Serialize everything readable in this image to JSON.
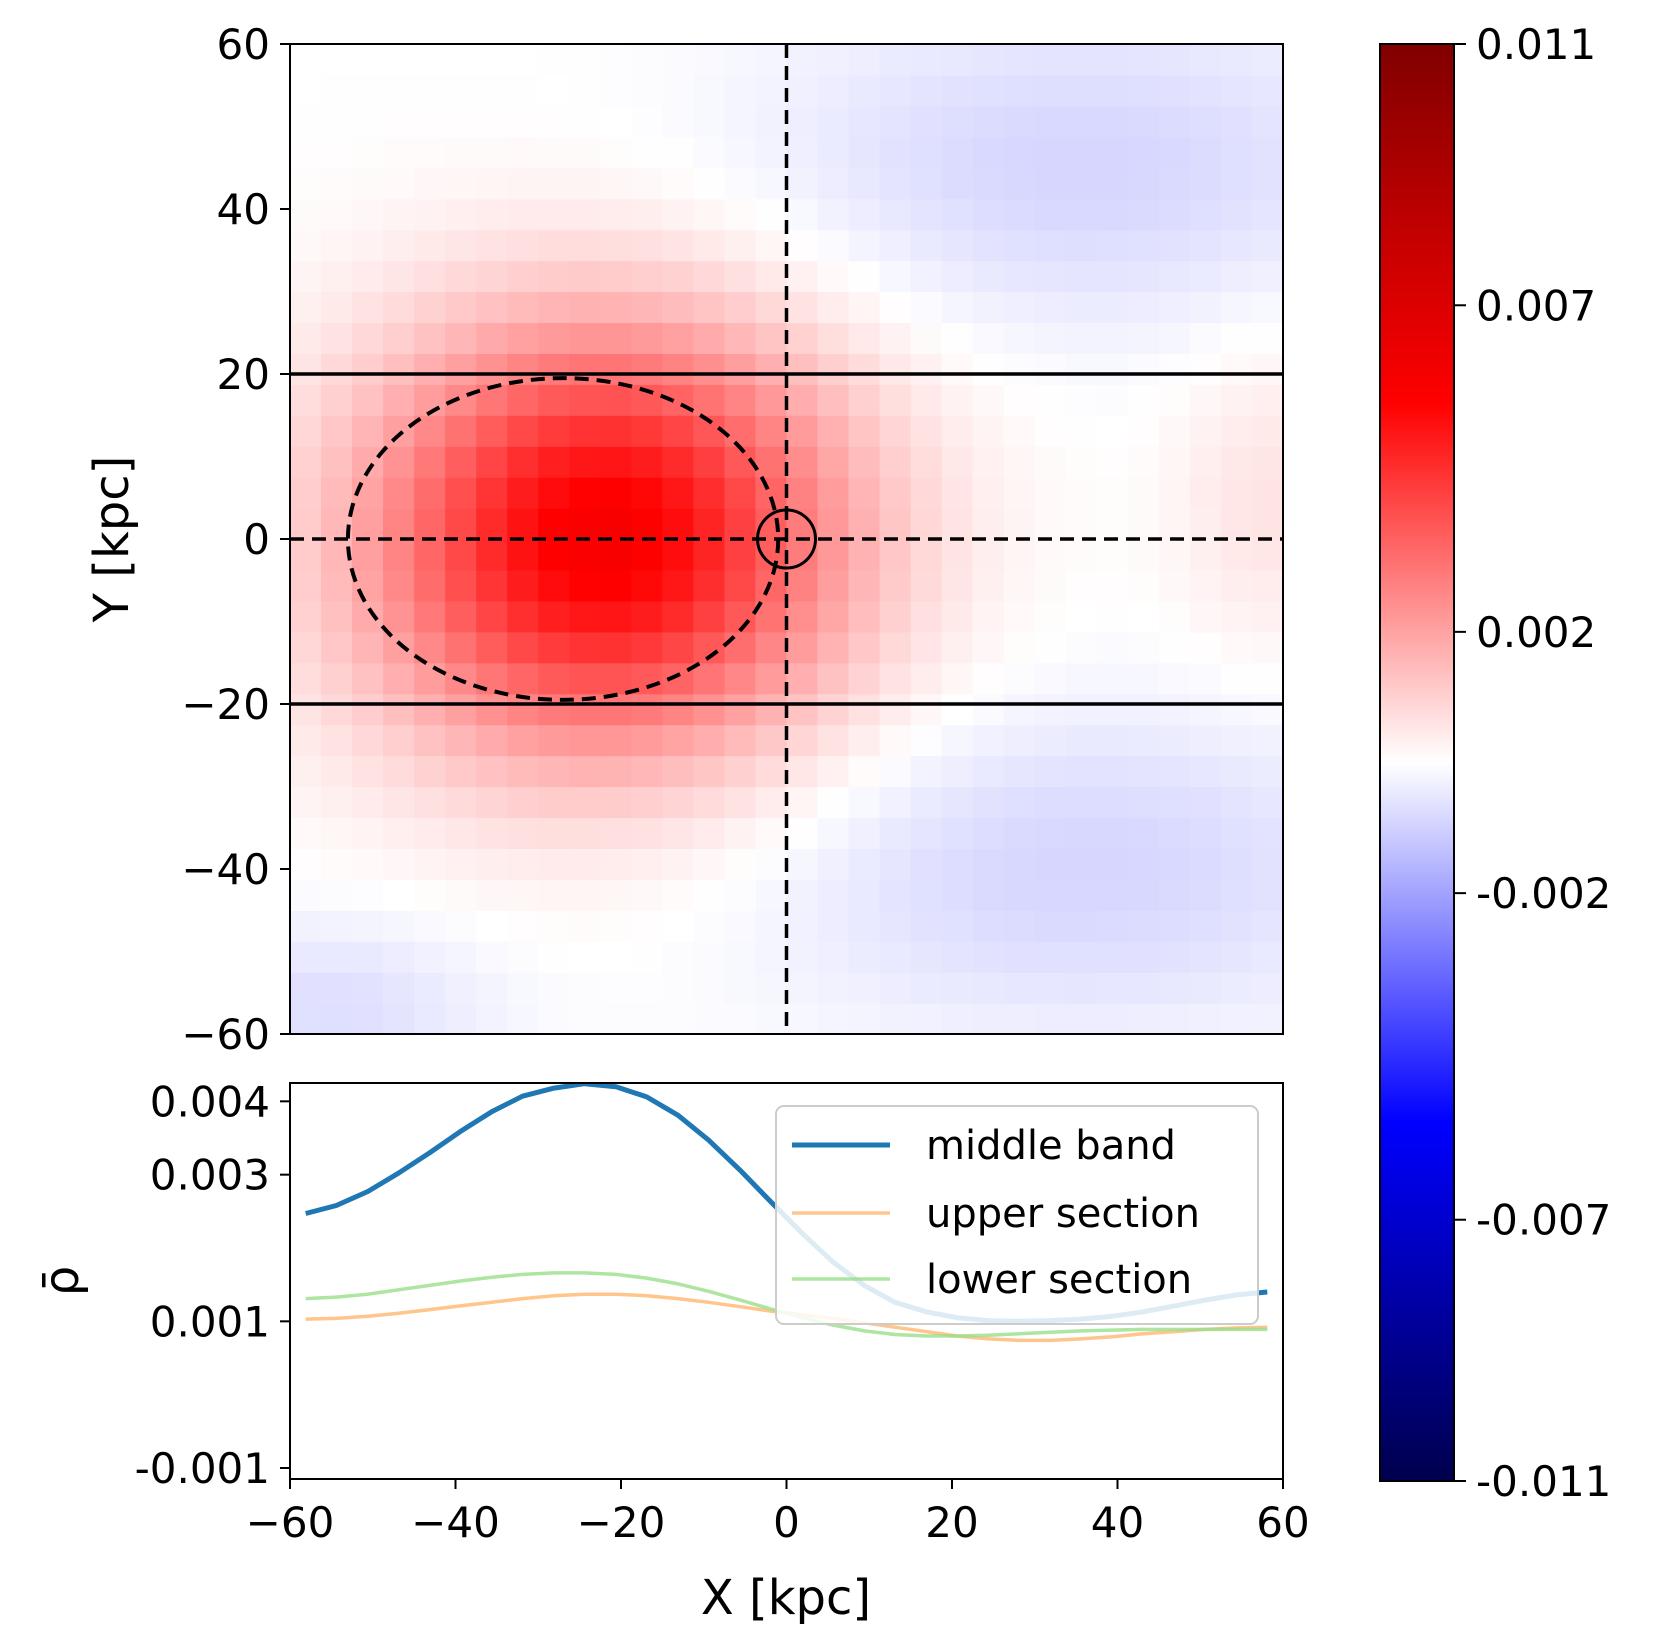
{
  "chart_data": [
    {
      "type": "heatmap",
      "xlabel": "",
      "ylabel": "Y [kpc]",
      "xlim": [
        -60,
        60
      ],
      "ylim": [
        -60,
        60
      ],
      "y_ticks": [
        60,
        40,
        20,
        0,
        -20,
        -40,
        -60
      ],
      "y_tick_labels": [
        "60",
        "40",
        "20",
        "0",
        "−20",
        "−40",
        "−60"
      ],
      "grid": false,
      "colormap": "seismic",
      "field": {
        "grid_cells": [
          32,
          32
        ],
        "positive_blob": {
          "center": [
            -22,
            0
          ],
          "sigma": [
            20,
            18
          ],
          "amplitude": 0.0058
        },
        "negative_lobes": [
          {
            "center": [
              35,
              45
            ],
            "sigma": [
              28,
              14
            ],
            "amplitude": -0.0009
          },
          {
            "center": [
              35,
              -40
            ],
            "sigma": [
              28,
              14
            ],
            "amplitude": -0.0009
          },
          {
            "center": [
              -55,
              -57
            ],
            "sigma": [
              14,
              8
            ],
            "amplitude": -0.0007
          },
          {
            "center": [
              58,
              5
            ],
            "sigma": [
              8,
              14
            ],
            "amplitude": 0.0006
          }
        ]
      },
      "overlays": {
        "band_lines_y": [
          20,
          -20
        ],
        "dashed_axes": {
          "x": 0,
          "y": 0
        },
        "dashed_ellipse": {
          "center": [
            -27,
            0
          ],
          "radii": [
            26,
            19.5
          ]
        },
        "origin_circle": {
          "center": [
            0,
            0
          ]
        }
      }
    },
    {
      "type": "line",
      "xlabel": "X [kpc]",
      "ylabel": "ρ̄",
      "xlim": [
        -60,
        60
      ],
      "ylim": [
        -0.00115,
        0.00425
      ],
      "x_ticks": [
        -60,
        -40,
        -20,
        0,
        20,
        40,
        60
      ],
      "x_tick_labels": [
        "−60",
        "−40",
        "−20",
        "0",
        "20",
        "40",
        "60"
      ],
      "y_ticks": [
        0.004,
        0.003,
        0.001,
        -0.001
      ],
      "y_tick_labels": [
        "0.004",
        "0.003",
        "0.001",
        "-0.001"
      ],
      "legend_position": "top-right",
      "grid": false,
      "series": [
        {
          "name": "middle band",
          "color": "#1f77b4",
          "x": [
            -58.1,
            -54.4,
            -50.6,
            -46.9,
            -43.1,
            -39.4,
            -35.6,
            -31.9,
            -28.1,
            -24.4,
            -20.6,
            -16.9,
            -13.1,
            -9.4,
            -5.6,
            -1.9,
            1.9,
            5.6,
            9.4,
            13.1,
            16.9,
            20.6,
            24.4,
            28.1,
            31.9,
            35.6,
            39.4,
            43.1,
            46.9,
            50.6,
            54.4,
            58.1
          ],
          "values": [
            0.00247,
            0.00258,
            0.00277,
            0.00302,
            0.0033,
            0.00359,
            0.00386,
            0.00407,
            0.00418,
            0.00424,
            0.0042,
            0.00406,
            0.00381,
            0.00347,
            0.00306,
            0.00263,
            0.0022,
            0.00181,
            0.00149,
            0.00126,
            0.00113,
            0.00105,
            0.00101,
            0.001,
            0.00101,
            0.00103,
            0.00107,
            0.00113,
            0.00121,
            0.00129,
            0.00136,
            0.0014
          ]
        },
        {
          "name": "upper section",
          "color": "#ffbb78",
          "x": [
            -58.1,
            -54.4,
            -50.6,
            -46.9,
            -43.1,
            -39.4,
            -35.6,
            -31.9,
            -28.1,
            -24.4,
            -20.6,
            -16.9,
            -13.1,
            -9.4,
            -5.6,
            -1.9,
            1.9,
            5.6,
            9.4,
            13.1,
            16.9,
            20.6,
            24.4,
            28.1,
            31.9,
            35.6,
            39.4,
            43.1,
            46.9,
            50.6,
            54.4,
            58.1
          ],
          "values": [
            0.00103,
            0.00104,
            0.00107,
            0.00111,
            0.00116,
            0.00121,
            0.00126,
            0.00131,
            0.00135,
            0.00137,
            0.00137,
            0.00135,
            0.00131,
            0.00126,
            0.0012,
            0.00114,
            0.00109,
            0.00104,
            0.00098,
            0.00092,
            0.00086,
            0.0008,
            0.00076,
            0.00074,
            0.00074,
            0.00076,
            0.00079,
            0.00083,
            0.00086,
            0.00089,
            0.00091,
            0.00092
          ]
        },
        {
          "name": "lower section",
          "color": "#98df8a",
          "x": [
            -58.1,
            -54.4,
            -50.6,
            -46.9,
            -43.1,
            -39.4,
            -35.6,
            -31.9,
            -28.1,
            -24.4,
            -20.6,
            -16.9,
            -13.1,
            -9.4,
            -5.6,
            -1.9,
            1.9,
            5.6,
            9.4,
            13.1,
            16.9,
            20.6,
            24.4,
            28.1,
            31.9,
            35.6,
            39.4,
            43.1,
            46.9,
            50.6,
            54.4,
            58.1
          ],
          "values": [
            0.00131,
            0.00133,
            0.00137,
            0.00143,
            0.00149,
            0.00155,
            0.0016,
            0.00164,
            0.00166,
            0.00166,
            0.00164,
            0.00159,
            0.00151,
            0.00141,
            0.00129,
            0.00117,
            0.00105,
            0.00095,
            0.00087,
            0.00082,
            0.0008,
            0.0008,
            0.00081,
            0.00083,
            0.00085,
            0.00087,
            0.00088,
            0.00089,
            0.00089,
            0.00089,
            0.00089,
            0.00089
          ]
        }
      ]
    },
    {
      "type": "colorbar",
      "range": [
        -0.011,
        0.011
      ],
      "ticks": [
        0.011,
        0.007,
        0.002,
        -0.002,
        -0.007,
        -0.011
      ],
      "tick_labels": [
        "0.011",
        "0.007",
        "0.002",
        "-0.002",
        "-0.007",
        "-0.011"
      ],
      "colormap": "seismic"
    }
  ]
}
